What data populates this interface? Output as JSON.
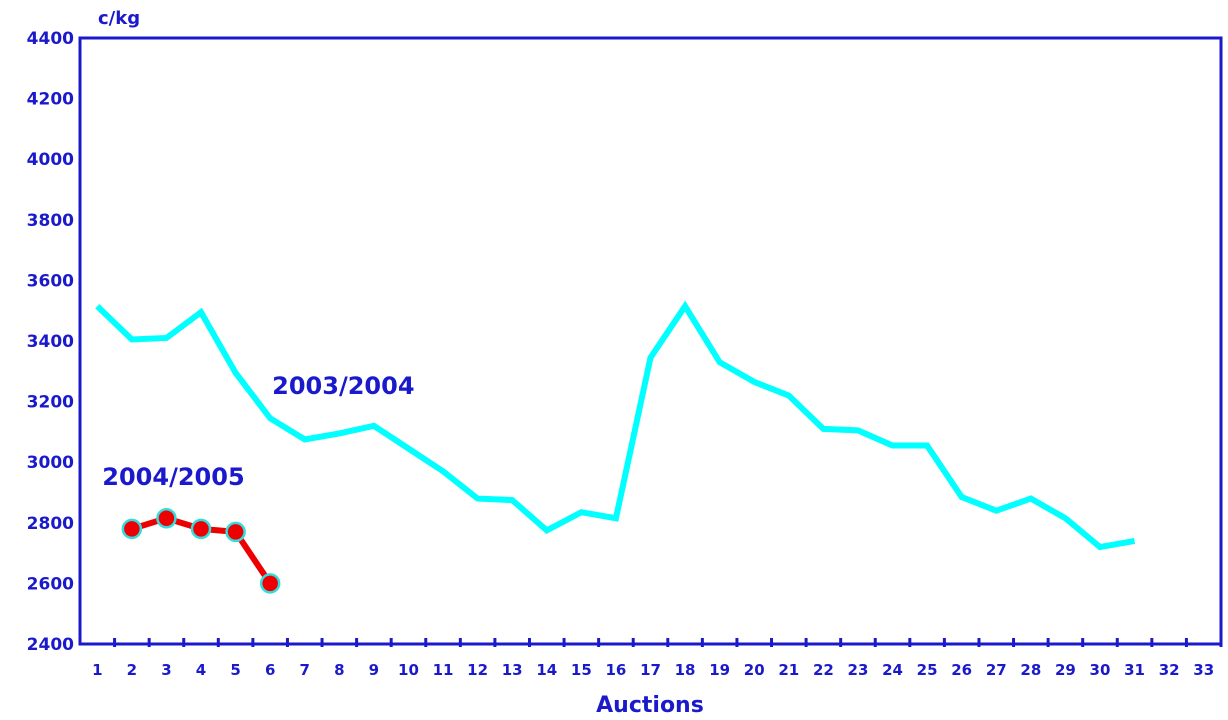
{
  "chart_data": {
    "type": "line",
    "ylabel": "c/kg",
    "xlabel": "Auctions",
    "ylim": [
      2400,
      4400
    ],
    "yticks": [
      2400,
      2600,
      2800,
      3000,
      3200,
      3400,
      3600,
      3800,
      4000,
      4200,
      4400
    ],
    "x": [
      1,
      2,
      3,
      4,
      5,
      6,
      7,
      8,
      9,
      10,
      11,
      12,
      13,
      14,
      15,
      16,
      17,
      18,
      19,
      20,
      21,
      22,
      23,
      24,
      25,
      26,
      27,
      28,
      29,
      30,
      31,
      32,
      33
    ],
    "grid": false,
    "series": [
      {
        "name": "2003/2004",
        "color": "#00ffff",
        "markers": false,
        "x": [
          1,
          2,
          3,
          4,
          5,
          6,
          7,
          8,
          9,
          10,
          11,
          12,
          13,
          14,
          15,
          16,
          17,
          18,
          19,
          20,
          21,
          22,
          23,
          24,
          25,
          26,
          27,
          28,
          29,
          30,
          31
        ],
        "values": [
          3515,
          3405,
          3410,
          3495,
          3295,
          3145,
          3075,
          3095,
          3120,
          3045,
          2970,
          2880,
          2875,
          2775,
          2835,
          2815,
          3345,
          3515,
          3330,
          3265,
          3220,
          3110,
          3105,
          3055,
          3055,
          2885,
          2840,
          2880,
          2815,
          2720,
          2740
        ]
      },
      {
        "name": "2004/2005",
        "color": "#ee0000",
        "marker_color": "#ee0000",
        "marker_edge_color": "#33dddd",
        "markers": true,
        "x": [
          2,
          3,
          4,
          5,
          6
        ],
        "values": [
          2780,
          2815,
          2780,
          2770,
          2600
        ]
      }
    ]
  }
}
